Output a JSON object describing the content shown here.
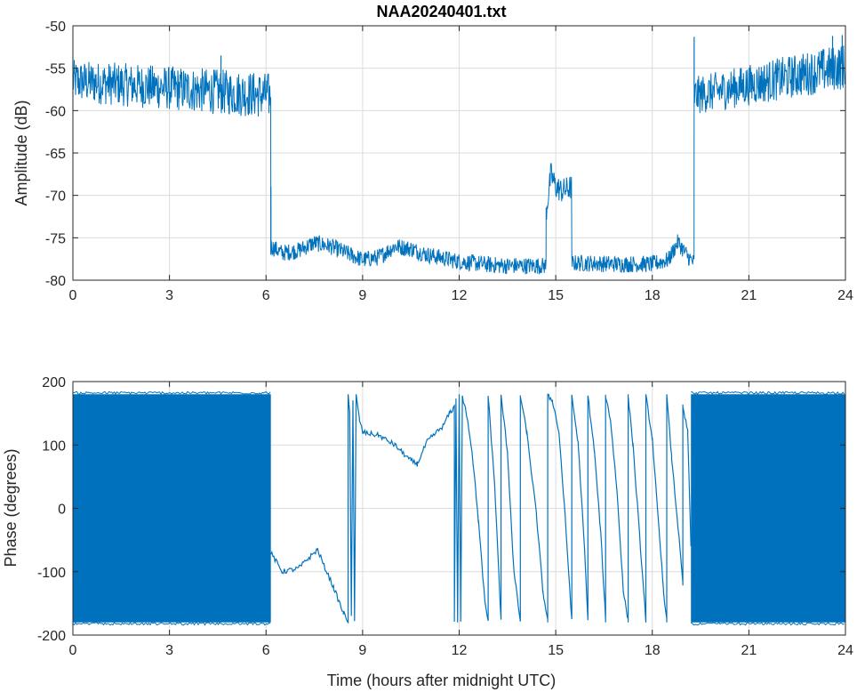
{
  "chart_data": [
    {
      "type": "line",
      "title": "NAA20240401.txt",
      "xlabel": "",
      "ylabel": "Amplitude (dB)",
      "xlim": [
        0,
        24
      ],
      "ylim": [
        -80,
        -50
      ],
      "xticks": [
        "0",
        "3",
        "6",
        "9",
        "12",
        "15",
        "18",
        "21",
        "24"
      ],
      "yticks": [
        "-50",
        "-55",
        "-60",
        "-65",
        "-70",
        "-75",
        "-80"
      ],
      "grid": true,
      "line_color": "#0072bd",
      "segments": [
        {
          "x_start": 0.0,
          "x_end": 6.15,
          "y_low": [
            -59,
            -61
          ],
          "y_high": [
            -54,
            -55.5
          ]
        },
        {
          "x_start": 6.15,
          "x_end": 14.7,
          "profile_x": [
            6.15,
            6.5,
            7.0,
            7.5,
            8.0,
            8.5,
            9.0,
            9.5,
            10.0,
            10.5,
            11.0,
            11.5,
            12.0,
            12.5,
            13.0,
            13.5,
            14.0,
            14.7
          ],
          "profile_y": [
            -76,
            -76.8,
            -76.5,
            -75.6,
            -76.0,
            -76.8,
            -77.6,
            -77.3,
            -76.0,
            -76.3,
            -77.0,
            -77.4,
            -77.8,
            -78.0,
            -78.2,
            -78.3,
            -78.3,
            -78.3
          ],
          "noise": 1.0
        },
        {
          "x_start": 14.7,
          "x_end": 15.5,
          "profile_x": [
            14.7,
            14.85,
            15.0,
            15.2,
            15.5
          ],
          "profile_y": [
            -72,
            -67.5,
            -69,
            -69.5,
            -69
          ],
          "noise": 1.5
        },
        {
          "x_start": 15.5,
          "x_end": 19.3,
          "profile_x": [
            15.5,
            16.0,
            17.0,
            18.0,
            18.5,
            18.8,
            19.1,
            19.3
          ],
          "profile_y": [
            -78,
            -78,
            -78.1,
            -78.1,
            -77.6,
            -75.5,
            -77.2,
            -78
          ],
          "noise": 1.0
        },
        {
          "x_start": 19.3,
          "x_end": 24.0,
          "y_low": [
            -60.5,
            -57.5
          ],
          "y_high": [
            -56,
            -52
          ]
        }
      ],
      "spikes": [
        {
          "x": 6.15,
          "y": -69
        },
        {
          "x": 19.3,
          "y": -51.3
        },
        {
          "x": 23.6,
          "y": -51.2
        },
        {
          "x": 23.9,
          "y": -51.1
        },
        {
          "x": 4.6,
          "y": -53.5
        }
      ]
    },
    {
      "type": "line",
      "title": "",
      "xlabel": "Time (hours after midnight UTC)",
      "ylabel": "Phase (degrees)",
      "xlim": [
        0,
        24
      ],
      "ylim": [
        -200,
        200
      ],
      "xticks": [
        "0",
        "3",
        "6",
        "9",
        "12",
        "15",
        "18",
        "21",
        "24"
      ],
      "yticks": [
        "200",
        "100",
        "0",
        "-100",
        "-200"
      ],
      "grid": true,
      "line_color": "#0072bd",
      "filled_bands": [
        {
          "x_start": 0.0,
          "x_end": 6.15,
          "y_min": -180,
          "y_max": 180
        },
        {
          "x_start": 19.2,
          "x_end": 24.0,
          "y_min": -180,
          "y_max": 180
        }
      ],
      "trace": [
        [
          6.15,
          -70
        ],
        [
          6.5,
          -100
        ],
        [
          7.0,
          -95
        ],
        [
          7.3,
          -80
        ],
        [
          7.6,
          -65
        ],
        [
          7.8,
          -90
        ],
        [
          8.1,
          -125
        ],
        [
          8.4,
          -165
        ],
        [
          8.55,
          -178
        ],
        [
          8.55,
          178
        ],
        [
          8.6,
          150
        ],
        [
          8.65,
          -170
        ],
        [
          8.7,
          170
        ],
        [
          8.75,
          -178
        ],
        [
          8.8,
          178
        ],
        [
          8.9,
          140
        ],
        [
          9.0,
          120
        ],
        [
          9.5,
          115
        ],
        [
          10.0,
          100
        ],
        [
          10.5,
          75
        ],
        [
          10.7,
          70
        ],
        [
          11.0,
          105
        ],
        [
          11.5,
          130
        ],
        [
          11.7,
          150
        ],
        [
          11.85,
          160
        ],
        [
          11.85,
          -178
        ],
        [
          11.9,
          170
        ],
        [
          11.95,
          -178
        ],
        [
          12.0,
          178
        ],
        [
          12.05,
          -178
        ],
        [
          12.1,
          175
        ],
        [
          12.2,
          160
        ],
        [
          12.4,
          90
        ],
        [
          12.6,
          -20
        ],
        [
          12.8,
          -150
        ],
        [
          12.9,
          -178
        ],
        [
          12.9,
          178
        ],
        [
          13.1,
          40
        ],
        [
          13.3,
          -178
        ],
        [
          13.3,
          178
        ],
        [
          13.5,
          90
        ],
        [
          13.7,
          -100
        ],
        [
          13.9,
          -178
        ],
        [
          13.9,
          178
        ],
        [
          14.1,
          120
        ],
        [
          14.4,
          -10
        ],
        [
          14.6,
          -130
        ],
        [
          14.75,
          -178
        ],
        [
          14.75,
          178
        ],
        [
          14.9,
          170
        ],
        [
          15.1,
          120
        ],
        [
          15.3,
          -20
        ],
        [
          15.5,
          -178
        ],
        [
          15.5,
          178
        ],
        [
          15.7,
          100
        ],
        [
          15.9,
          -70
        ],
        [
          16.0,
          -178
        ],
        [
          16.0,
          178
        ],
        [
          16.2,
          90
        ],
        [
          16.4,
          -40
        ],
        [
          16.55,
          -178
        ],
        [
          16.55,
          178
        ],
        [
          16.7,
          140
        ],
        [
          16.9,
          30
        ],
        [
          17.1,
          -130
        ],
        [
          17.25,
          -178
        ],
        [
          17.25,
          178
        ],
        [
          17.4,
          100
        ],
        [
          17.6,
          -40
        ],
        [
          17.8,
          -178
        ],
        [
          17.8,
          178
        ],
        [
          18.0,
          110
        ],
        [
          18.2,
          -30
        ],
        [
          18.35,
          -130
        ],
        [
          18.45,
          -178
        ],
        [
          18.45,
          178
        ],
        [
          18.6,
          80
        ],
        [
          18.8,
          -30
        ],
        [
          18.95,
          -120
        ],
        [
          18.95,
          160
        ],
        [
          19.1,
          120
        ],
        [
          19.2,
          -60
        ]
      ]
    }
  ]
}
